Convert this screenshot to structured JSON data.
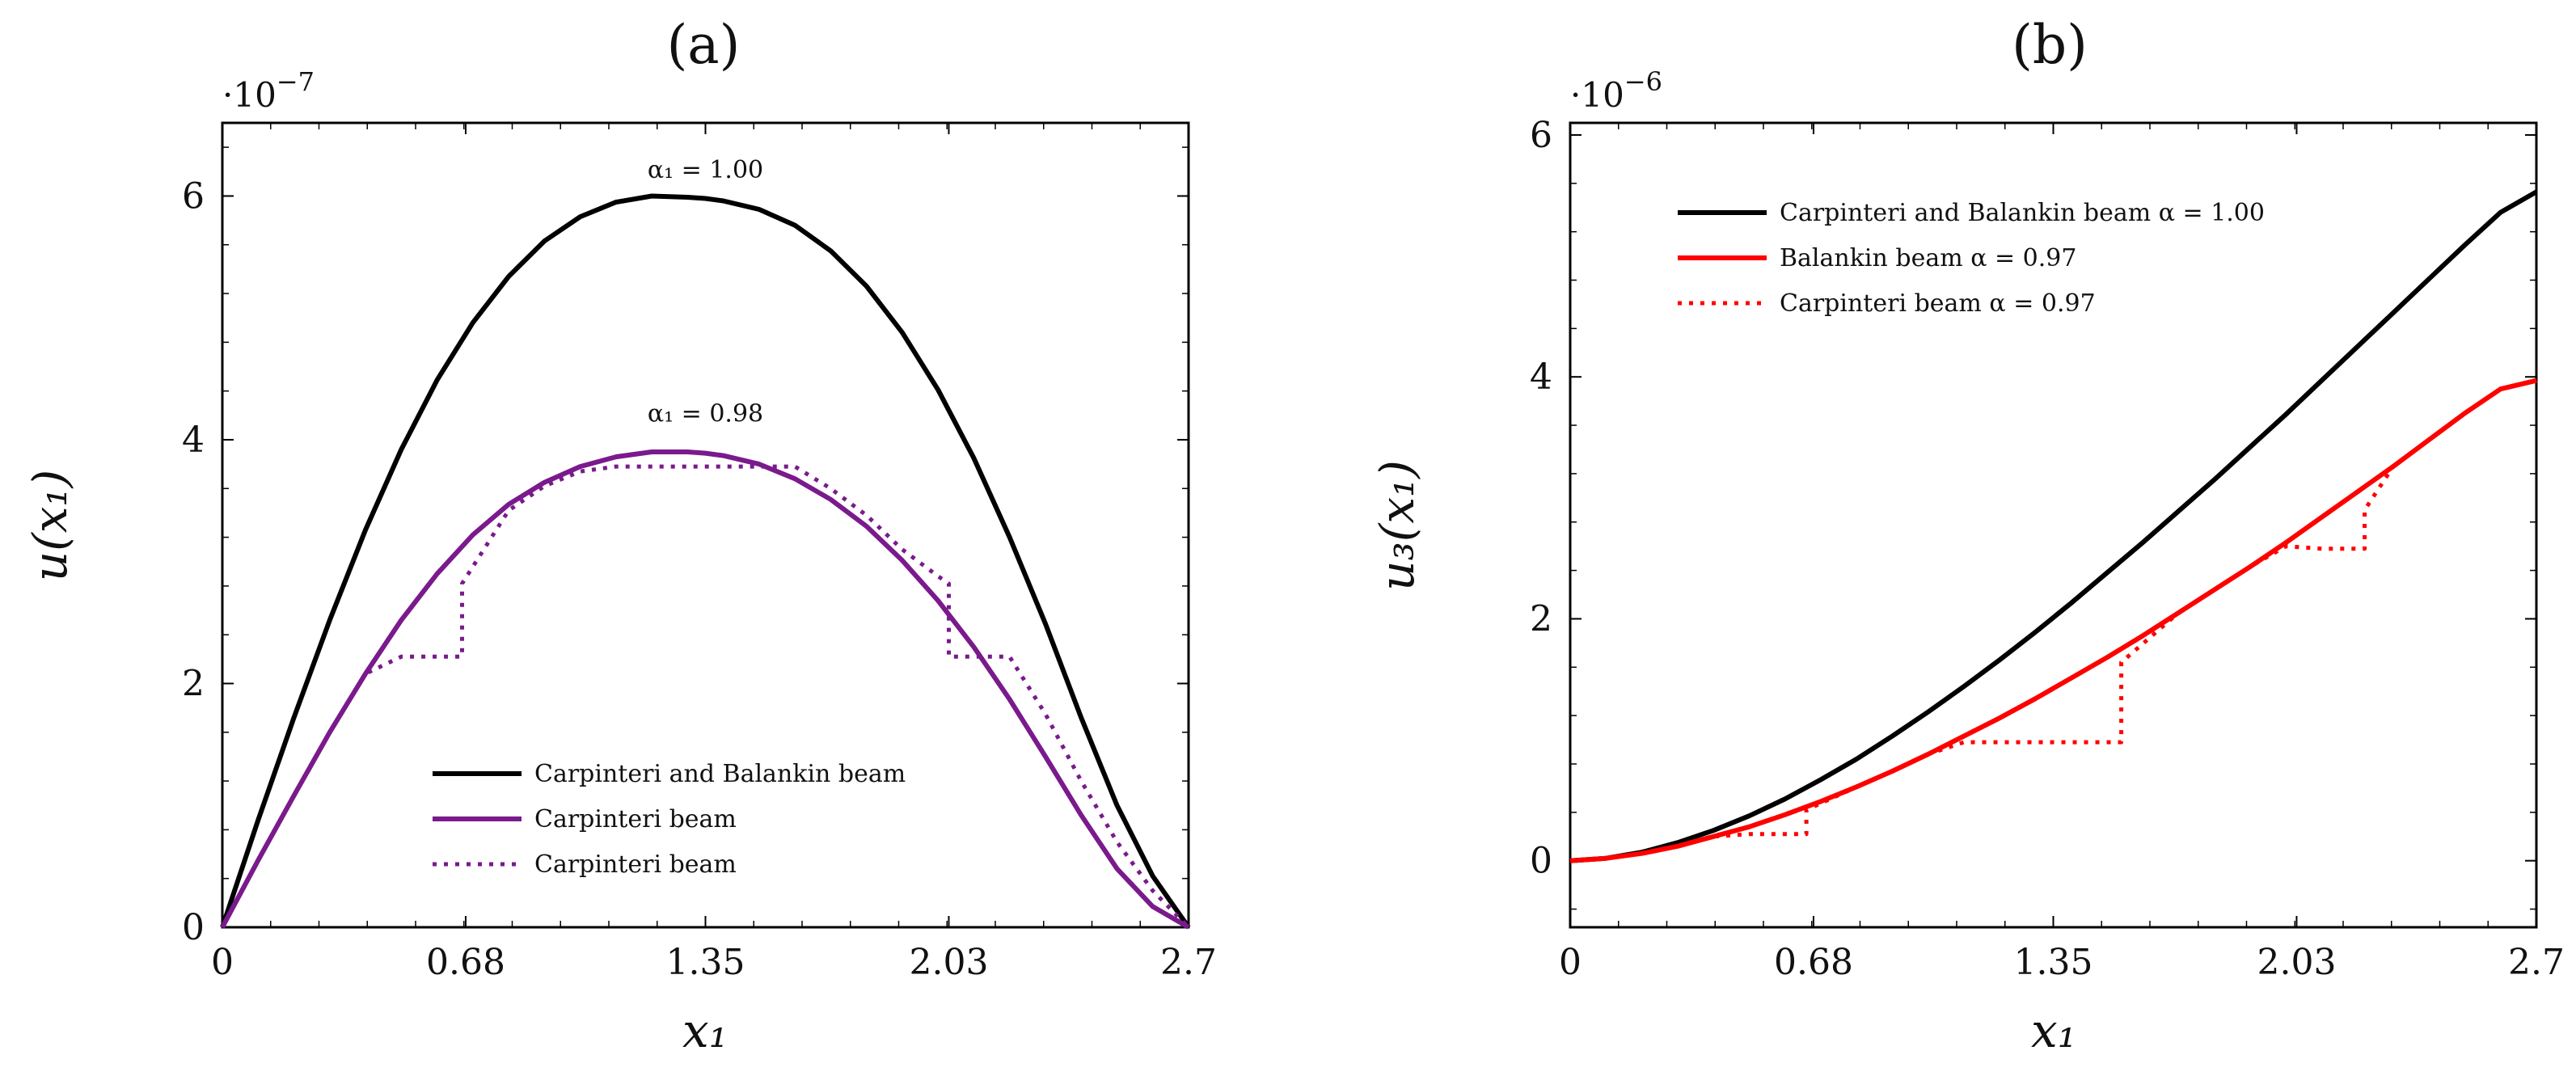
{
  "chart_data": [
    {
      "type": "line",
      "title": "(a)",
      "xlabel": "x₁",
      "ylabel": "u(x₁)",
      "y_scale_label": "·10",
      "y_scale_exponent": "−7",
      "xlim": [
        0,
        2.7
      ],
      "ylim": [
        0,
        6.6
      ],
      "x_ticks": [
        0,
        0.68,
        1.35,
        2.03,
        2.7
      ],
      "x_tick_labels": [
        "0",
        "0.68",
        "1.35",
        "2.03",
        "2.7"
      ],
      "y_ticks": [
        0,
        2,
        4,
        6
      ],
      "y_tick_labels": [
        "0",
        "2",
        "4",
        "6"
      ],
      "annotations": [
        {
          "text": "α₁ = 1.00",
          "x": 1.35,
          "y": 6.15
        },
        {
          "text": "α₁ = 0.98",
          "x": 1.35,
          "y": 4.15
        }
      ],
      "legend_position": "bottom-center",
      "series": [
        {
          "name": "Carpinteri and Balankin beam",
          "color": "#000000",
          "style": "solid",
          "x": [
            0,
            0.1,
            0.2,
            0.3,
            0.4,
            0.5,
            0.6,
            0.7,
            0.8,
            0.9,
            1.0,
            1.1,
            1.2,
            1.3,
            1.35,
            1.4,
            1.5,
            1.6,
            1.7,
            1.8,
            1.9,
            2.0,
            2.1,
            2.2,
            2.3,
            2.4,
            2.5,
            2.6,
            2.7
          ],
          "values": [
            0,
            0.88,
            1.72,
            2.52,
            3.26,
            3.92,
            4.49,
            4.96,
            5.34,
            5.63,
            5.83,
            5.95,
            6.0,
            5.99,
            5.98,
            5.96,
            5.89,
            5.76,
            5.55,
            5.26,
            4.88,
            4.41,
            3.85,
            3.2,
            2.49,
            1.72,
            1.0,
            0.42,
            0
          ]
        },
        {
          "name": "Carpinteri beam",
          "color": "#7a1a8c",
          "style": "solid",
          "x": [
            0,
            0.1,
            0.2,
            0.3,
            0.4,
            0.5,
            0.6,
            0.7,
            0.8,
            0.9,
            1.0,
            1.1,
            1.2,
            1.3,
            1.35,
            1.4,
            1.5,
            1.6,
            1.7,
            1.8,
            1.9,
            2.0,
            2.1,
            2.2,
            2.3,
            2.4,
            2.5,
            2.6,
            2.7
          ],
          "values": [
            0,
            0.55,
            1.08,
            1.6,
            2.08,
            2.52,
            2.9,
            3.22,
            3.47,
            3.65,
            3.78,
            3.86,
            3.9,
            3.9,
            3.89,
            3.87,
            3.8,
            3.68,
            3.51,
            3.29,
            3.01,
            2.68,
            2.3,
            1.87,
            1.4,
            0.92,
            0.48,
            0.17,
            0
          ]
        },
        {
          "name": "Carpinteri beam",
          "color": "#7a1a8c",
          "style": "dotted",
          "x": [
            0,
            0.1,
            0.2,
            0.3,
            0.4,
            0.5,
            0.5,
            0.67,
            0.67,
            0.8,
            0.9,
            1.0,
            1.1,
            1.1,
            1.6,
            1.7,
            1.8,
            1.9,
            2.0,
            2.03,
            2.03,
            2.2,
            2.3,
            2.4,
            2.5,
            2.6,
            2.7
          ],
          "values": [
            0,
            0.55,
            1.08,
            1.6,
            2.08,
            2.22,
            2.22,
            2.22,
            2.82,
            3.42,
            3.62,
            3.74,
            3.78,
            3.78,
            3.78,
            3.6,
            3.38,
            3.1,
            2.88,
            2.82,
            2.22,
            2.22,
            1.75,
            1.2,
            0.7,
            0.3,
            0
          ]
        }
      ]
    },
    {
      "type": "line",
      "title": "(b)",
      "xlabel": "x₁",
      "ylabel": "u₃(x₁)",
      "y_scale_label": "·10",
      "y_scale_exponent": "−6",
      "xlim": [
        0,
        2.7
      ],
      "ylim": [
        -0.55,
        6.1
      ],
      "x_ticks": [
        0,
        0.68,
        1.35,
        2.03,
        2.7
      ],
      "x_tick_labels": [
        "0",
        "0.68",
        "1.35",
        "2.03",
        "2.7"
      ],
      "y_ticks": [
        0,
        2,
        4,
        6
      ],
      "y_tick_labels": [
        "0",
        "2",
        "4",
        "6"
      ],
      "legend_position": "top-left",
      "series": [
        {
          "name": "Carpinteri and Balankin beam α = 1.00",
          "color": "#000000",
          "style": "solid",
          "x": [
            0,
            0.1,
            0.2,
            0.3,
            0.4,
            0.5,
            0.6,
            0.7,
            0.8,
            0.9,
            1.0,
            1.1,
            1.2,
            1.3,
            1.4,
            1.5,
            1.6,
            1.7,
            1.8,
            1.9,
            2.0,
            2.1,
            2.2,
            2.3,
            2.4,
            2.5,
            2.6,
            2.7
          ],
          "values": [
            0,
            0.02,
            0.07,
            0.15,
            0.25,
            0.37,
            0.51,
            0.67,
            0.84,
            1.03,
            1.23,
            1.44,
            1.66,
            1.89,
            2.13,
            2.38,
            2.63,
            2.89,
            3.15,
            3.42,
            3.69,
            3.97,
            4.25,
            4.53,
            4.81,
            5.09,
            5.36,
            5.53
          ]
        },
        {
          "name": "Balankin beam α = 0.97",
          "color": "#ff0000",
          "style": "solid",
          "x": [
            0,
            0.1,
            0.2,
            0.3,
            0.4,
            0.5,
            0.6,
            0.7,
            0.8,
            0.9,
            1.0,
            1.1,
            1.2,
            1.3,
            1.4,
            1.5,
            1.6,
            1.7,
            1.8,
            1.9,
            2.0,
            2.1,
            2.2,
            2.3,
            2.4,
            2.5,
            2.6,
            2.7
          ],
          "values": [
            0,
            0.02,
            0.06,
            0.12,
            0.2,
            0.28,
            0.38,
            0.49,
            0.61,
            0.74,
            0.88,
            1.03,
            1.18,
            1.34,
            1.51,
            1.68,
            1.86,
            2.05,
            2.24,
            2.43,
            2.63,
            2.84,
            3.05,
            3.26,
            3.48,
            3.7,
            3.9,
            3.97
          ]
        },
        {
          "name": "Carpinteri beam α = 0.97",
          "color": "#ff0000",
          "style": "dotted",
          "x": [
            0,
            0.1,
            0.2,
            0.3,
            0.4,
            0.5,
            0.52,
            0.66,
            0.66,
            0.8,
            0.9,
            1.0,
            1.1,
            1.16,
            1.16,
            1.54,
            1.54,
            1.7,
            1.8,
            1.9,
            2.0,
            2.1,
            2.1,
            2.22,
            2.22,
            2.3,
            2.4,
            2.5,
            2.6,
            2.7
          ],
          "values": [
            0,
            0.02,
            0.06,
            0.12,
            0.2,
            0.22,
            0.22,
            0.22,
            0.42,
            0.61,
            0.74,
            0.88,
            0.98,
            0.98,
            0.98,
            0.98,
            1.64,
            2.05,
            2.24,
            2.43,
            2.6,
            2.58,
            2.58,
            2.58,
            2.9,
            3.26,
            3.48,
            3.7,
            3.9,
            3.97
          ]
        }
      ]
    }
  ]
}
